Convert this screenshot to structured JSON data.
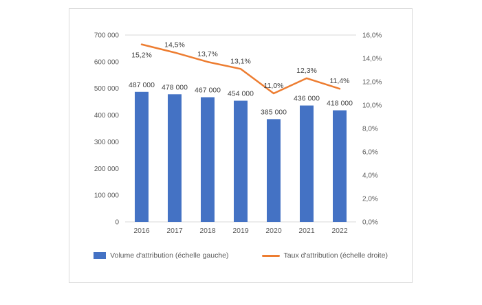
{
  "chart_data": {
    "type": "combo",
    "categories": [
      "2016",
      "2017",
      "2018",
      "2019",
      "2020",
      "2021",
      "2022"
    ],
    "series": [
      {
        "name": "Volume d'attribution (échelle gauche)",
        "type": "bar",
        "axis": "left",
        "color": "#4472C4",
        "values": [
          487000,
          478000,
          467000,
          454000,
          385000,
          436000,
          418000
        ],
        "labels": [
          "487 000",
          "478 000",
          "467 000",
          "454 000",
          "385 000",
          "436 000",
          "418 000"
        ]
      },
      {
        "name": "Taux d'attribution (échelle droite)",
        "type": "line",
        "axis": "right",
        "color": "#ED7D31",
        "values": [
          15.2,
          14.5,
          13.7,
          13.1,
          11.0,
          12.3,
          11.4
        ],
        "labels": [
          "15,2%",
          "14,5%",
          "13,7%",
          "13,1%",
          "11,0%",
          "12,3%",
          "11,4%"
        ]
      }
    ],
    "left_axis": {
      "min": 0,
      "max": 700000,
      "ticks": [
        "0",
        "100 000",
        "200 000",
        "300 000",
        "400 000",
        "500 000",
        "600 000",
        "700 000"
      ]
    },
    "right_axis": {
      "min": 0,
      "max": 16,
      "ticks": [
        "0,0%",
        "2,0%",
        "4,0%",
        "6,0%",
        "8,0%",
        "10,0%",
        "12,0%",
        "14,0%",
        "16,0%"
      ]
    },
    "legend_position": "bottom",
    "grid": "top-line-and-baseline-only",
    "grid_color": "#d9d9d9"
  }
}
